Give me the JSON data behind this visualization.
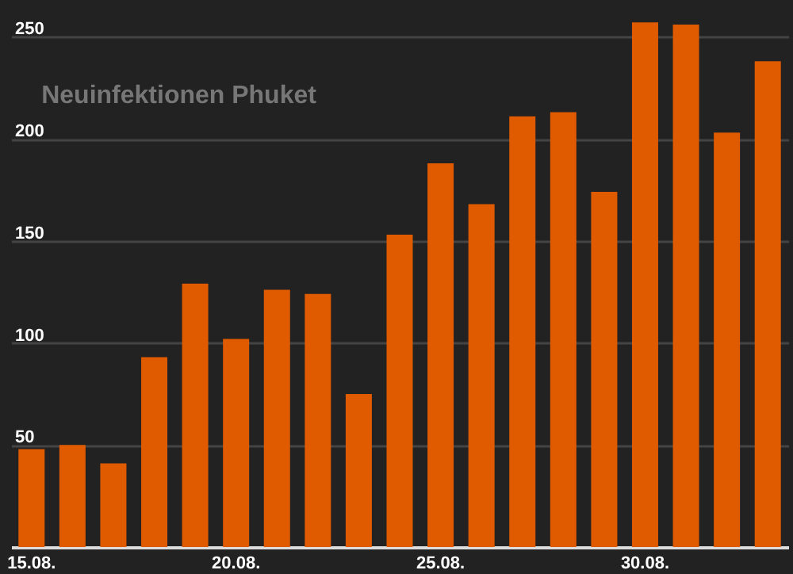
{
  "chart_data": {
    "type": "bar",
    "title": "Neuinfektionen Phuket",
    "categories": [
      "15.08.",
      null,
      null,
      null,
      null,
      "20.08.",
      null,
      null,
      null,
      null,
      "25.08.",
      null,
      null,
      null,
      null,
      "30.08.",
      null,
      null,
      null
    ],
    "values": [
      48,
      50,
      41,
      93,
      129,
      102,
      126,
      124,
      75,
      153,
      188,
      168,
      211,
      213,
      174,
      257,
      256,
      203,
      238
    ],
    "color": "#e05a00",
    "ylim": [
      0,
      268
    ],
    "yticks": [
      50,
      100,
      150,
      200,
      250
    ],
    "grid": "y"
  }
}
